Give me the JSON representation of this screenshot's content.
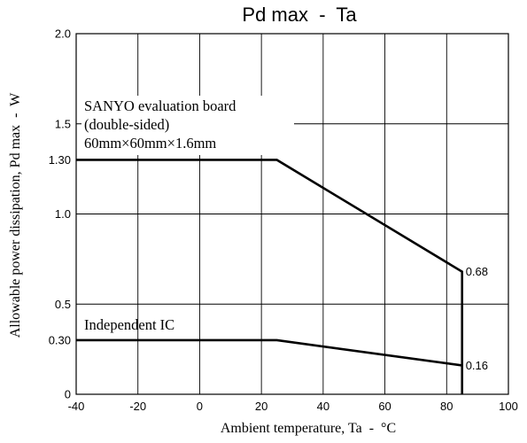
{
  "chart_data": {
    "type": "line",
    "title": "Pd max  -  Ta",
    "xlabel": "Ambient temperature, Ta  -  °C",
    "ylabel": "Allowable power dissipation, Pd max  -  W",
    "xlim": [
      -40,
      100
    ],
    "ylim": [
      0,
      2.0
    ],
    "x_ticks": [
      -40,
      -20,
      0,
      20,
      40,
      60,
      80,
      100
    ],
    "x_tick_labels": [
      "-40",
      "-20",
      "0",
      "20",
      "40",
      "60",
      "80",
      "100"
    ],
    "y_ticks": [
      0,
      0.3,
      0.5,
      1.0,
      1.3,
      1.5,
      2.0
    ],
    "y_tick_labels": [
      "0",
      "0.30",
      "0.5",
      "1.0",
      "1.30",
      "1.5",
      "2.0"
    ],
    "y_grid": [
      0.5,
      1.0,
      1.5
    ],
    "grid": true,
    "series": [
      {
        "name": "SANYO evaluation board (double-sided) 60mm×60mm×1.6mm",
        "x": [
          -40,
          25,
          85,
          85
        ],
        "y": [
          1.3,
          1.3,
          0.68,
          0
        ],
        "end_label": "0.68"
      },
      {
        "name": "Independent IC",
        "x": [
          -40,
          25,
          85
        ],
        "y": [
          0.3,
          0.3,
          0.16
        ],
        "end_label": "0.16"
      }
    ],
    "annotations": {
      "board_lines": [
        "SANYO evaluation board",
        "(double-sided)",
        "60mm×60mm×1.6mm"
      ],
      "ic_label": "Independent IC"
    }
  }
}
